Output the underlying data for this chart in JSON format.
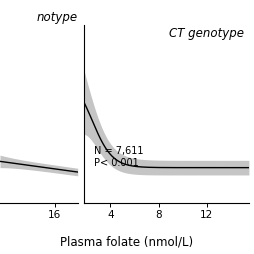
{
  "title_right": "CT genotype",
  "annotation_n": "N = 7,611",
  "annotation_p": "P< 0.001",
  "xlabel": "Plasma folate (nmol/L)",
  "left_xticks": [
    16
  ],
  "right_xticks": [
    4,
    8,
    12
  ],
  "left_xlim": [
    10,
    18.5
  ],
  "right_xlim": [
    1.8,
    15.5
  ],
  "background_color": "#ffffff",
  "line_color": "#000000",
  "ci_color": "#808080",
  "ci_alpha": 0.45,
  "font_size_title": 8.5,
  "font_size_annot": 7.0,
  "font_size_tick": 7.5,
  "font_size_xlabel": 8.5
}
